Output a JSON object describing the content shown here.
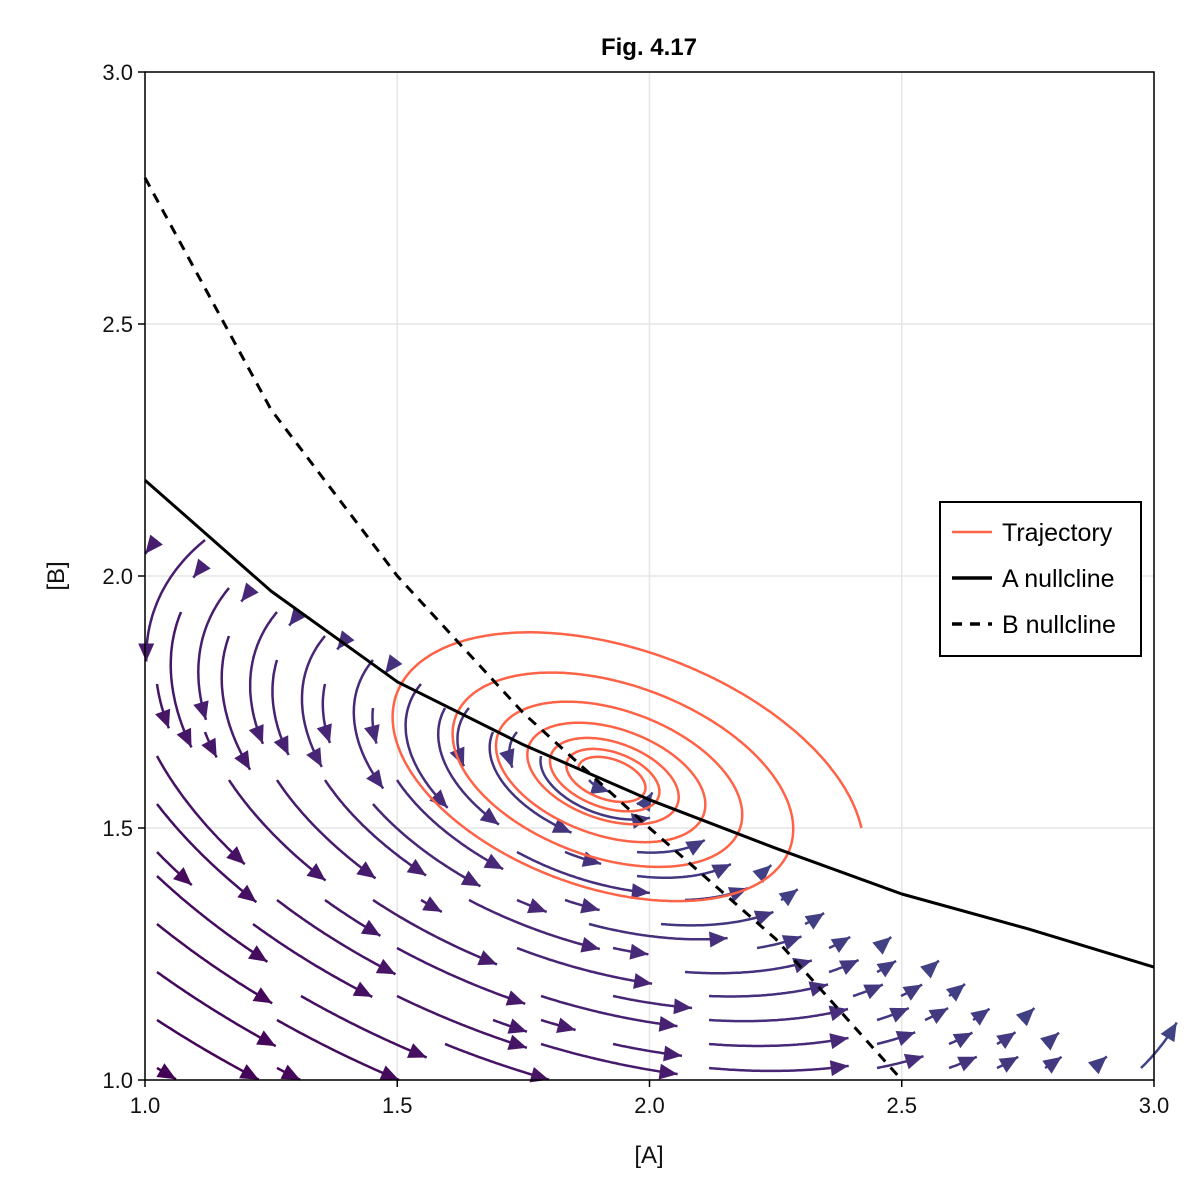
{
  "chart_data": {
    "type": "streamplot",
    "title": "Fig. 4.17",
    "xlabel": "[A]",
    "ylabel": "[B]",
    "xlim": [
      1.0,
      3.0
    ],
    "ylim": [
      1.0,
      3.0
    ],
    "xticks": [
      "1.0",
      "1.5",
      "2.0",
      "2.5",
      "3.0"
    ],
    "yticks": [
      "1.0",
      "1.5",
      "2.0",
      "2.5",
      "3.0"
    ],
    "grid": true,
    "legend_position": "right",
    "colormap": "viridis",
    "vector_field": {
      "equilibrium": [
        1.92,
        1.6
      ],
      "rotation": "counterclockwise",
      "jacobian": [
        [
          -1.3,
          -5.0
        ],
        [
          2.0,
          1.1
        ]
      ]
    },
    "series": [
      {
        "name": "Trajectory",
        "color": "#ff6347",
        "style": "solid",
        "start": [
          2.42,
          1.5
        ],
        "end_near": [
          1.93,
          1.6
        ]
      },
      {
        "name": "A nullcline",
        "color": "#000000",
        "style": "solid",
        "x": [
          1.0,
          1.25,
          1.5,
          1.75,
          2.0,
          2.25,
          2.5,
          2.75,
          3.0
        ],
        "y": [
          2.19,
          1.97,
          1.79,
          1.665,
          1.556,
          1.46,
          1.369,
          1.3,
          1.224
        ]
      },
      {
        "name": "B nullcline",
        "color": "#000000",
        "style": "dashed",
        "x": [
          1.0,
          1.25,
          1.5,
          1.75,
          2.0,
          2.25,
          2.5
        ],
        "y": [
          2.79,
          2.33,
          2.0,
          1.728,
          1.5,
          1.28,
          1.0
        ]
      }
    ]
  }
}
